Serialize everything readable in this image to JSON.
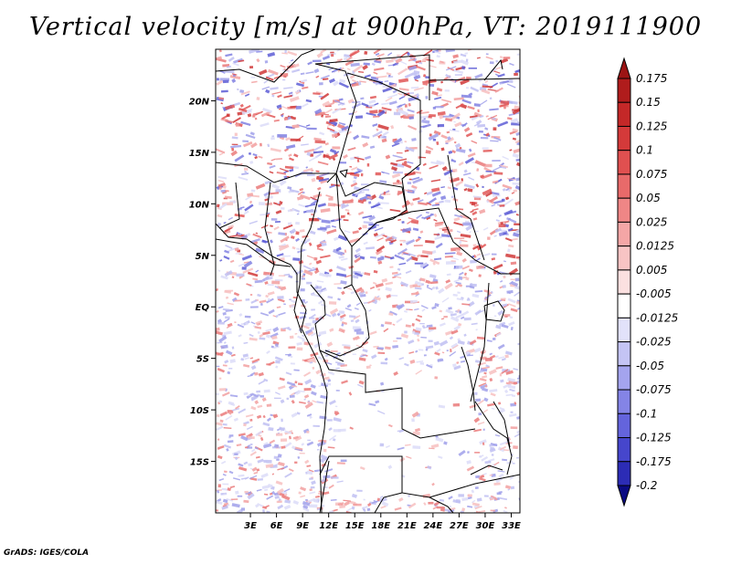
{
  "title": "Vertical velocity [m/s] at 900hPa, VT: 2019111900",
  "credit": "GrADS: IGES/COLA",
  "map": {
    "lon_range": [
      -1,
      34
    ],
    "lat_range": [
      -20,
      25
    ],
    "lat_ticks": [
      {
        "label": "20N",
        "value": 20
      },
      {
        "label": "15N",
        "value": 15
      },
      {
        "label": "10N",
        "value": 10
      },
      {
        "label": "5N",
        "value": 5
      },
      {
        "label": "EQ",
        "value": 0
      },
      {
        "label": "5S",
        "value": -5
      },
      {
        "label": "10S",
        "value": -10
      },
      {
        "label": "15S",
        "value": -15
      }
    ],
    "lon_ticks": [
      {
        "label": "3E",
        "value": 3
      },
      {
        "label": "6E",
        "value": 6
      },
      {
        "label": "9E",
        "value": 9
      },
      {
        "label": "12E",
        "value": 12
      },
      {
        "label": "15E",
        "value": 15
      },
      {
        "label": "18E",
        "value": 18
      },
      {
        "label": "21E",
        "value": 21
      },
      {
        "label": "24E",
        "value": 24
      },
      {
        "label": "27E",
        "value": 27
      },
      {
        "label": "30E",
        "value": 30
      },
      {
        "label": "33E",
        "value": 33
      }
    ]
  },
  "colorbar": {
    "levels": [
      {
        "label": "0.175",
        "color": "#b01c1c"
      },
      {
        "label": "0.15",
        "color": "#c42828"
      },
      {
        "label": "0.125",
        "color": "#d43a3a"
      },
      {
        "label": "0.1",
        "color": "#e05050"
      },
      {
        "label": "0.075",
        "color": "#e86a6a"
      },
      {
        "label": "0.05",
        "color": "#ef8686"
      },
      {
        "label": "0.025",
        "color": "#f4a6a6"
      },
      {
        "label": "0.0125",
        "color": "#f8c4c4"
      },
      {
        "label": "0.005",
        "color": "#fbe0e0"
      },
      {
        "label": "-0.005",
        "color": "#ffffff"
      },
      {
        "label": "-0.0125",
        "color": "#e2e2fa"
      },
      {
        "label": "-0.025",
        "color": "#c4c4f4"
      },
      {
        "label": "-0.05",
        "color": "#a4a4ee"
      },
      {
        "label": "-0.075",
        "color": "#8484e6"
      },
      {
        "label": "-0.1",
        "color": "#6464dc"
      },
      {
        "label": "-0.125",
        "color": "#4646cc"
      },
      {
        "label": "-0.175",
        "color": "#2c2cb6"
      },
      {
        "label": "-0.2",
        "color": "#1a1a98"
      }
    ],
    "top_color": "#9c1414",
    "bottom_color": "#0a0a82"
  },
  "colors": {
    "red_noise": "#e25a5a",
    "blue_noise": "#6a6ae2",
    "border": "#000000"
  }
}
